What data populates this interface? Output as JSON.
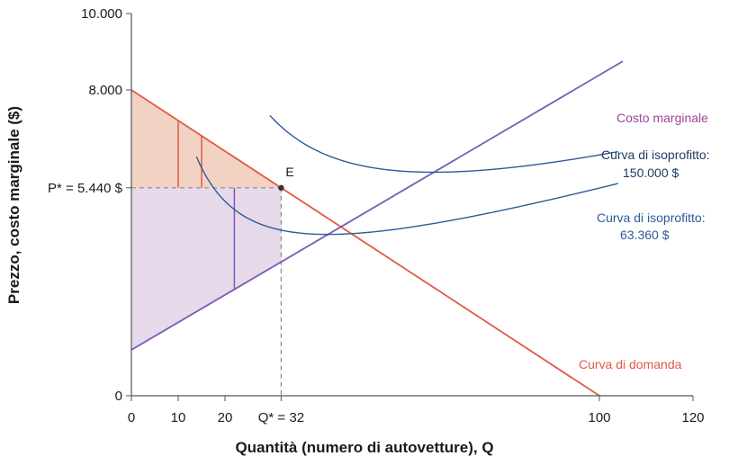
{
  "chart_data": {
    "type": "line",
    "xlabel": "Quantità (numero di autovetture), Q",
    "ylabel": "Prezzo, costo marginale ($)",
    "xlim": [
      0,
      120
    ],
    "ylim": [
      0,
      10000
    ],
    "x_ticks": [
      {
        "value": 0,
        "label": "0"
      },
      {
        "value": 10,
        "label": "10"
      },
      {
        "value": 20,
        "label": "20"
      },
      {
        "value": 32,
        "label": "Q* = 32"
      },
      {
        "value": 100,
        "label": "100"
      },
      {
        "value": 120,
        "label": "120"
      }
    ],
    "y_ticks": [
      {
        "value": 0,
        "label": "0"
      },
      {
        "value": 5440,
        "label": "P* = 5.440 $"
      },
      {
        "value": 8000,
        "label": "8.000"
      },
      {
        "value": 10000,
        "label": "10.000"
      }
    ],
    "grid": false,
    "colors": {
      "demand": "#e05a47",
      "marginal_cost": "#7b5bb5",
      "isoprofit": "#2e5b95",
      "consumer_surplus_fill": "#f2d3c3",
      "producer_surplus_fill": "#e6d9ea",
      "guide": "#8a8a8a",
      "marginal_cost_label": "#a0449a"
    },
    "series": [
      {
        "name": "Curva di domanda",
        "kind": "demand",
        "points": [
          [
            0,
            8000
          ],
          [
            100,
            0
          ]
        ]
      },
      {
        "name": "Costo marginale",
        "kind": "marginal_cost",
        "points": [
          [
            0,
            1200
          ],
          [
            105,
            8750
          ]
        ]
      },
      {
        "name": "Curva di isoprofitto: 150.000 $",
        "kind": "isoprofit",
        "profit": 150000,
        "asymptote_cost": 1200,
        "cost_slope": 72,
        "x_range": [
          29.6,
          104
        ]
      },
      {
        "name": "Curva di isoprofitto: 63.360 $",
        "kind": "isoprofit",
        "profit": 63360,
        "asymptote_cost": 1200,
        "cost_slope": 72,
        "x_range": [
          13.9,
          104
        ]
      }
    ],
    "equilibrium": {
      "label": "E",
      "x": 32,
      "y": 5440
    },
    "surplus_vertical_lines": [
      {
        "x": 10,
        "from_y": 5440,
        "to_y": 7200,
        "color": "demand"
      },
      {
        "x": 15,
        "from_y": 5440,
        "to_y": 6800,
        "color": "demand"
      },
      {
        "x": 22,
        "from_y": 2800,
        "to_y": 5440,
        "color": "marginal_cost"
      }
    ],
    "labels": {
      "demand": "Curva di domanda",
      "marginal_cost": "Costo marginale",
      "iso_high_line1": "Curva di isoprofitto:",
      "iso_high_line2": "150.000 $",
      "iso_low_line1": "Curva di isoprofitto:",
      "iso_low_line2": "63.360 $"
    }
  }
}
